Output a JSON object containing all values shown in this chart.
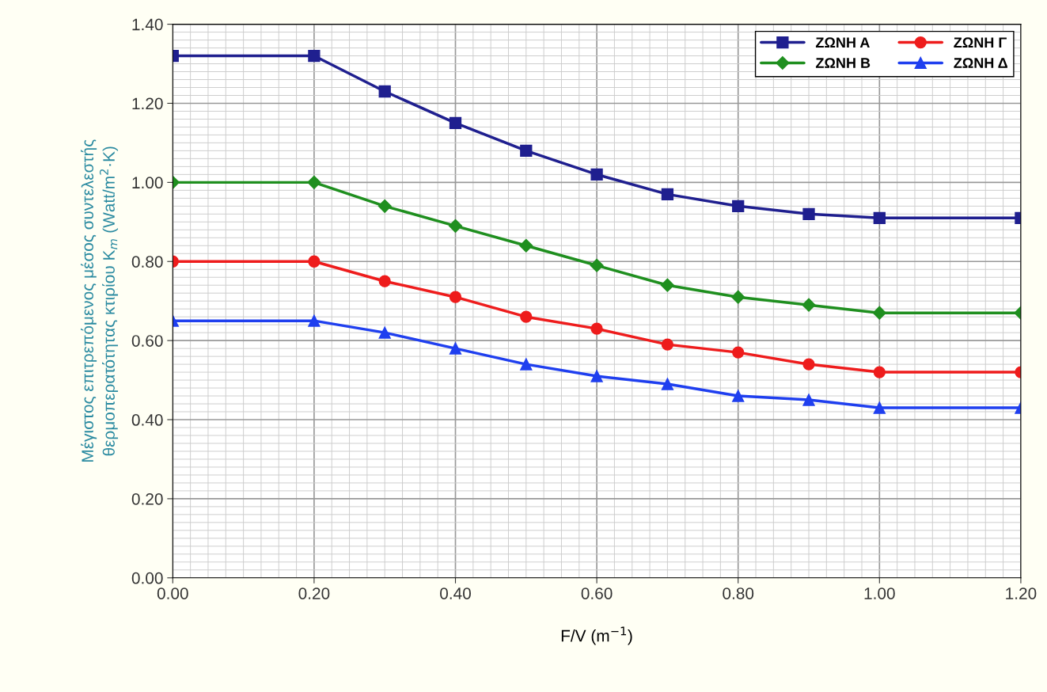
{
  "chart_data": {
    "type": "line",
    "xlabel": "F/V (m$^{−1}$)",
    "ylabel": "Μέγιστος επιτρεπόμενος μέσος συντελεστής\nθερμοπερατότητας κτιρίου K$_{m}$ (Watt/m$^{2}$·K)",
    "x": [
      0.0,
      0.2,
      0.3,
      0.4,
      0.5,
      0.6,
      0.7,
      0.8,
      0.9,
      1.0,
      1.2
    ],
    "series": [
      {
        "name": "ΖΩΝΗ Α",
        "color": "#1f1f8f",
        "marker": "square",
        "values": [
          1.32,
          1.32,
          1.23,
          1.15,
          1.08,
          1.02,
          0.97,
          0.94,
          0.92,
          0.91,
          0.91
        ]
      },
      {
        "name": "ΖΩΝΗ Β",
        "color": "#1f8f1f",
        "marker": "diamond",
        "values": [
          1.0,
          1.0,
          0.94,
          0.89,
          0.84,
          0.79,
          0.74,
          0.71,
          0.69,
          0.67,
          0.67
        ]
      },
      {
        "name": "ΖΩΝΗ Γ",
        "color": "#ee1c1c",
        "marker": "circle",
        "values": [
          0.8,
          0.8,
          0.75,
          0.71,
          0.66,
          0.63,
          0.59,
          0.57,
          0.54,
          0.52,
          0.52
        ]
      },
      {
        "name": "ΖΩΝΗ Δ",
        "color": "#1f3fef",
        "marker": "triangle",
        "values": [
          0.65,
          0.65,
          0.62,
          0.58,
          0.54,
          0.51,
          0.49,
          0.46,
          0.45,
          0.43,
          0.43
        ]
      }
    ],
    "xlim": [
      0.0,
      1.2
    ],
    "xticks": [
      {
        "value": 0.0,
        "label": "0.00"
      },
      {
        "value": 0.2,
        "label": "0.20"
      },
      {
        "value": 0.4,
        "label": "0.40"
      },
      {
        "value": 0.6,
        "label": "0.60"
      },
      {
        "value": 0.8,
        "label": "0.80"
      },
      {
        "value": 1.0,
        "label": "1.00"
      },
      {
        "value": 1.2,
        "label": "1.20"
      }
    ],
    "ylim": [
      0.0,
      1.4
    ],
    "yticks": [
      {
        "value": 0.0,
        "label": "0.00"
      },
      {
        "value": 0.2,
        "label": "0.20"
      },
      {
        "value": 0.4,
        "label": "0.40"
      },
      {
        "value": 0.6,
        "label": "0.60"
      },
      {
        "value": 0.8,
        "label": "0.80"
      },
      {
        "value": 1.0,
        "label": "1.00"
      },
      {
        "value": 1.2,
        "label": "1.20"
      },
      {
        "value": 1.4,
        "label": "1.40"
      }
    ],
    "grid": true,
    "legend": "top right",
    "line_style": "solid"
  }
}
